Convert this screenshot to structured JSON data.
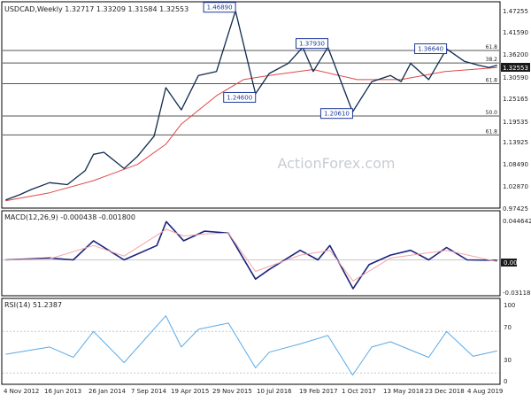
{
  "chart_data": [
    {
      "type": "candlestick",
      "title": "USDCAD,Weekly  1.32717 1.33209 1.31584 1.32553",
      "watermark": "ActionForex.com",
      "ylim": [
        0.9742,
        1.4782
      ],
      "y_ticks": [
        "1.47255",
        "1.41590",
        "1.36200",
        "1.30590",
        "1.25165",
        "1.19535",
        "1.13925",
        "1.08490",
        "1.02870",
        "0.97425"
      ],
      "last_price_label": "1.32553",
      "x_ticks": [
        "4 Nov 2012",
        "16 Jun 2013",
        "26 Jan 2014",
        "7 Sep 2014",
        "19 Apr 2015",
        "29 Nov 2015",
        "10 Jul 2016",
        "19 Feb 2017",
        "1 Oct 2017",
        "13 May 2018",
        "23 Dec 2018",
        "4 Aug 2019"
      ],
      "price_series_weekly_close_sampled": [
        {
          "date": "2012-11-04",
          "value": 0.992
        },
        {
          "date": "2013-01-15",
          "value": 1.005
        },
        {
          "date": "2013-03-15",
          "value": 1.018
        },
        {
          "date": "2013-06-16",
          "value": 1.035
        },
        {
          "date": "2013-09-15",
          "value": 1.03
        },
        {
          "date": "2013-12-15",
          "value": 1.065
        },
        {
          "date": "2014-01-26",
          "value": 1.105
        },
        {
          "date": "2014-03-20",
          "value": 1.11
        },
        {
          "date": "2014-07-01",
          "value": 1.07
        },
        {
          "date": "2014-09-07",
          "value": 1.1
        },
        {
          "date": "2014-12-01",
          "value": 1.15
        },
        {
          "date": "2015-01-30",
          "value": 1.27
        },
        {
          "date": "2015-04-19",
          "value": 1.215
        },
        {
          "date": "2015-07-15",
          "value": 1.3
        },
        {
          "date": "2015-10-15",
          "value": 1.31
        },
        {
          "date": "2016-01-20",
          "value": 1.46
        },
        {
          "date": "2016-05-01",
          "value": 1.255
        },
        {
          "date": "2016-07-10",
          "value": 1.305
        },
        {
          "date": "2016-10-15",
          "value": 1.33
        },
        {
          "date": "2016-12-28",
          "value": 1.37
        },
        {
          "date": "2017-02-19",
          "value": 1.31
        },
        {
          "date": "2017-05-05",
          "value": 1.37
        },
        {
          "date": "2017-09-08",
          "value": 1.21
        },
        {
          "date": "2017-12-15",
          "value": 1.285
        },
        {
          "date": "2018-03-20",
          "value": 1.3
        },
        {
          "date": "2018-05-13",
          "value": 1.285
        },
        {
          "date": "2018-07-01",
          "value": 1.33
        },
        {
          "date": "2018-10-01",
          "value": 1.29
        },
        {
          "date": "2018-12-31",
          "value": 1.366
        },
        {
          "date": "2019-04-01",
          "value": 1.335
        },
        {
          "date": "2019-06-15",
          "value": 1.325
        },
        {
          "date": "2019-08-04",
          "value": 1.32
        },
        {
          "date": "2019-09-15",
          "value": 1.3255
        }
      ],
      "ma_series": [
        {
          "date": "2012-11-04",
          "value": 0.99
        },
        {
          "date": "2013-06-16",
          "value": 1.01
        },
        {
          "date": "2014-01-26",
          "value": 1.04
        },
        {
          "date": "2014-09-07",
          "value": 1.08
        },
        {
          "date": "2015-01-30",
          "value": 1.13
        },
        {
          "date": "2015-04-19",
          "value": 1.18
        },
        {
          "date": "2015-10-15",
          "value": 1.25
        },
        {
          "date": "2016-03-01",
          "value": 1.29
        },
        {
          "date": "2016-07-10",
          "value": 1.3
        },
        {
          "date": "2017-02-19",
          "value": 1.315
        },
        {
          "date": "2017-10-01",
          "value": 1.29
        },
        {
          "date": "2018-05-13",
          "value": 1.29
        },
        {
          "date": "2018-12-23",
          "value": 1.31
        },
        {
          "date": "2019-09-15",
          "value": 1.32
        }
      ],
      "price_callouts": [
        {
          "text": "1.46890",
          "date": "2016-01-20",
          "value": 1.4689
        },
        {
          "text": "1.24600",
          "date": "2016-05-01",
          "value": 1.246
        },
        {
          "text": "1.37930",
          "date": "2017-05-05",
          "value": 1.3793
        },
        {
          "text": "1.20610",
          "date": "2017-09-08",
          "value": 1.2061
        },
        {
          "text": "1.36640",
          "date": "2018-12-31",
          "value": 1.3664
        }
      ],
      "fib_lines": [
        {
          "label": "61.8",
          "value": 1.362
        },
        {
          "label": "38.2",
          "value": 1.331
        },
        {
          "label": "61.8",
          "value": 1.28
        },
        {
          "label": "50.0",
          "value": 1.2
        },
        {
          "label": "61.8",
          "value": 1.153
        }
      ]
    },
    {
      "type": "line",
      "title": "MACD(12,26,9) -0.000438 -0.001800",
      "ylim": [
        -0.0365,
        0.0495
      ],
      "y_ticks": [
        "0.044642",
        "0.00",
        "-0.031183"
      ],
      "zero_label": "0.00",
      "series": [
        {
          "name": "MACD",
          "color": "#1a237e",
          "values": [
            {
              "date": "2012-11-04",
              "value": 0.0
            },
            {
              "date": "2013-06-16",
              "value": 0.002
            },
            {
              "date": "2013-10-15",
              "value": 0.0
            },
            {
              "date": "2014-01-26",
              "value": 0.02
            },
            {
              "date": "2014-07-01",
              "value": 0.0
            },
            {
              "date": "2014-12-15",
              "value": 0.015
            },
            {
              "date": "2015-02-01",
              "value": 0.04
            },
            {
              "date": "2015-05-01",
              "value": 0.02
            },
            {
              "date": "2015-08-15",
              "value": 0.03
            },
            {
              "date": "2015-12-15",
              "value": 0.028
            },
            {
              "date": "2016-05-01",
              "value": -0.02
            },
            {
              "date": "2016-07-10",
              "value": -0.01
            },
            {
              "date": "2016-12-15",
              "value": 0.01
            },
            {
              "date": "2017-03-15",
              "value": 0.0
            },
            {
              "date": "2017-05-15",
              "value": 0.015
            },
            {
              "date": "2017-09-10",
              "value": -0.03
            },
            {
              "date": "2017-12-01",
              "value": -0.005
            },
            {
              "date": "2018-03-20",
              "value": 0.005
            },
            {
              "date": "2018-07-01",
              "value": 0.01
            },
            {
              "date": "2018-10-01",
              "value": 0.0
            },
            {
              "date": "2018-12-31",
              "value": 0.013
            },
            {
              "date": "2019-04-15",
              "value": 0.0
            },
            {
              "date": "2019-09-15",
              "value": -0.0004
            }
          ]
        },
        {
          "name": "Signal",
          "color": "#f4a6a6",
          "values": [
            {
              "date": "2012-11-04",
              "value": 0.0
            },
            {
              "date": "2013-06-16",
              "value": 0.001
            },
            {
              "date": "2014-01-26",
              "value": 0.015
            },
            {
              "date": "2014-07-01",
              "value": 0.004
            },
            {
              "date": "2015-02-01",
              "value": 0.032
            },
            {
              "date": "2015-05-01",
              "value": 0.025
            },
            {
              "date": "2015-08-15",
              "value": 0.027
            },
            {
              "date": "2015-12-15",
              "value": 0.028
            },
            {
              "date": "2016-05-01",
              "value": -0.012
            },
            {
              "date": "2016-12-15",
              "value": 0.005
            },
            {
              "date": "2017-05-15",
              "value": 0.01
            },
            {
              "date": "2017-09-10",
              "value": -0.022
            },
            {
              "date": "2018-03-20",
              "value": 0.002
            },
            {
              "date": "2018-12-31",
              "value": 0.01
            },
            {
              "date": "2019-09-15",
              "value": -0.0018
            }
          ]
        }
      ]
    },
    {
      "type": "line",
      "title": "RSI(14) 51.2387",
      "ylim": [
        20,
        100
      ],
      "y_ticks": [
        "100",
        "70",
        "30",
        "0"
      ],
      "reference_lines": [
        70,
        30
      ],
      "series": [
        {
          "name": "RSI",
          "color": "#5aa9e6",
          "values": [
            {
              "date": "2012-11-04",
              "value": 48
            },
            {
              "date": "2013-06-16",
              "value": 55
            },
            {
              "date": "2013-10-15",
              "value": 45
            },
            {
              "date": "2014-01-26",
              "value": 70
            },
            {
              "date": "2014-07-01",
              "value": 40
            },
            {
              "date": "2015-01-30",
              "value": 85
            },
            {
              "date": "2015-04-19",
              "value": 55
            },
            {
              "date": "2015-07-15",
              "value": 72
            },
            {
              "date": "2015-12-15",
              "value": 78
            },
            {
              "date": "2016-05-01",
              "value": 35
            },
            {
              "date": "2016-07-10",
              "value": 50
            },
            {
              "date": "2016-12-15",
              "value": 58
            },
            {
              "date": "2017-05-05",
              "value": 66
            },
            {
              "date": "2017-09-08",
              "value": 28
            },
            {
              "date": "2017-12-15",
              "value": 55
            },
            {
              "date": "2018-03-20",
              "value": 60
            },
            {
              "date": "2018-10-01",
              "value": 45
            },
            {
              "date": "2018-12-31",
              "value": 70
            },
            {
              "date": "2019-05-15",
              "value": 46
            },
            {
              "date": "2019-09-15",
              "value": 51.2
            }
          ]
        }
      ]
    }
  ],
  "colors": {
    "price": "#0f2b4c",
    "ma": "#e04848",
    "fib": "#555555",
    "macd": "#1a237e",
    "signal": "#f4a6a6",
    "rsi": "#5aa9e6",
    "grid": "#c8c8c8",
    "text": "#222222",
    "callout_fill": "#ffffff",
    "callout_border": "#1f3b99",
    "watermark": "#c8ccd2"
  }
}
